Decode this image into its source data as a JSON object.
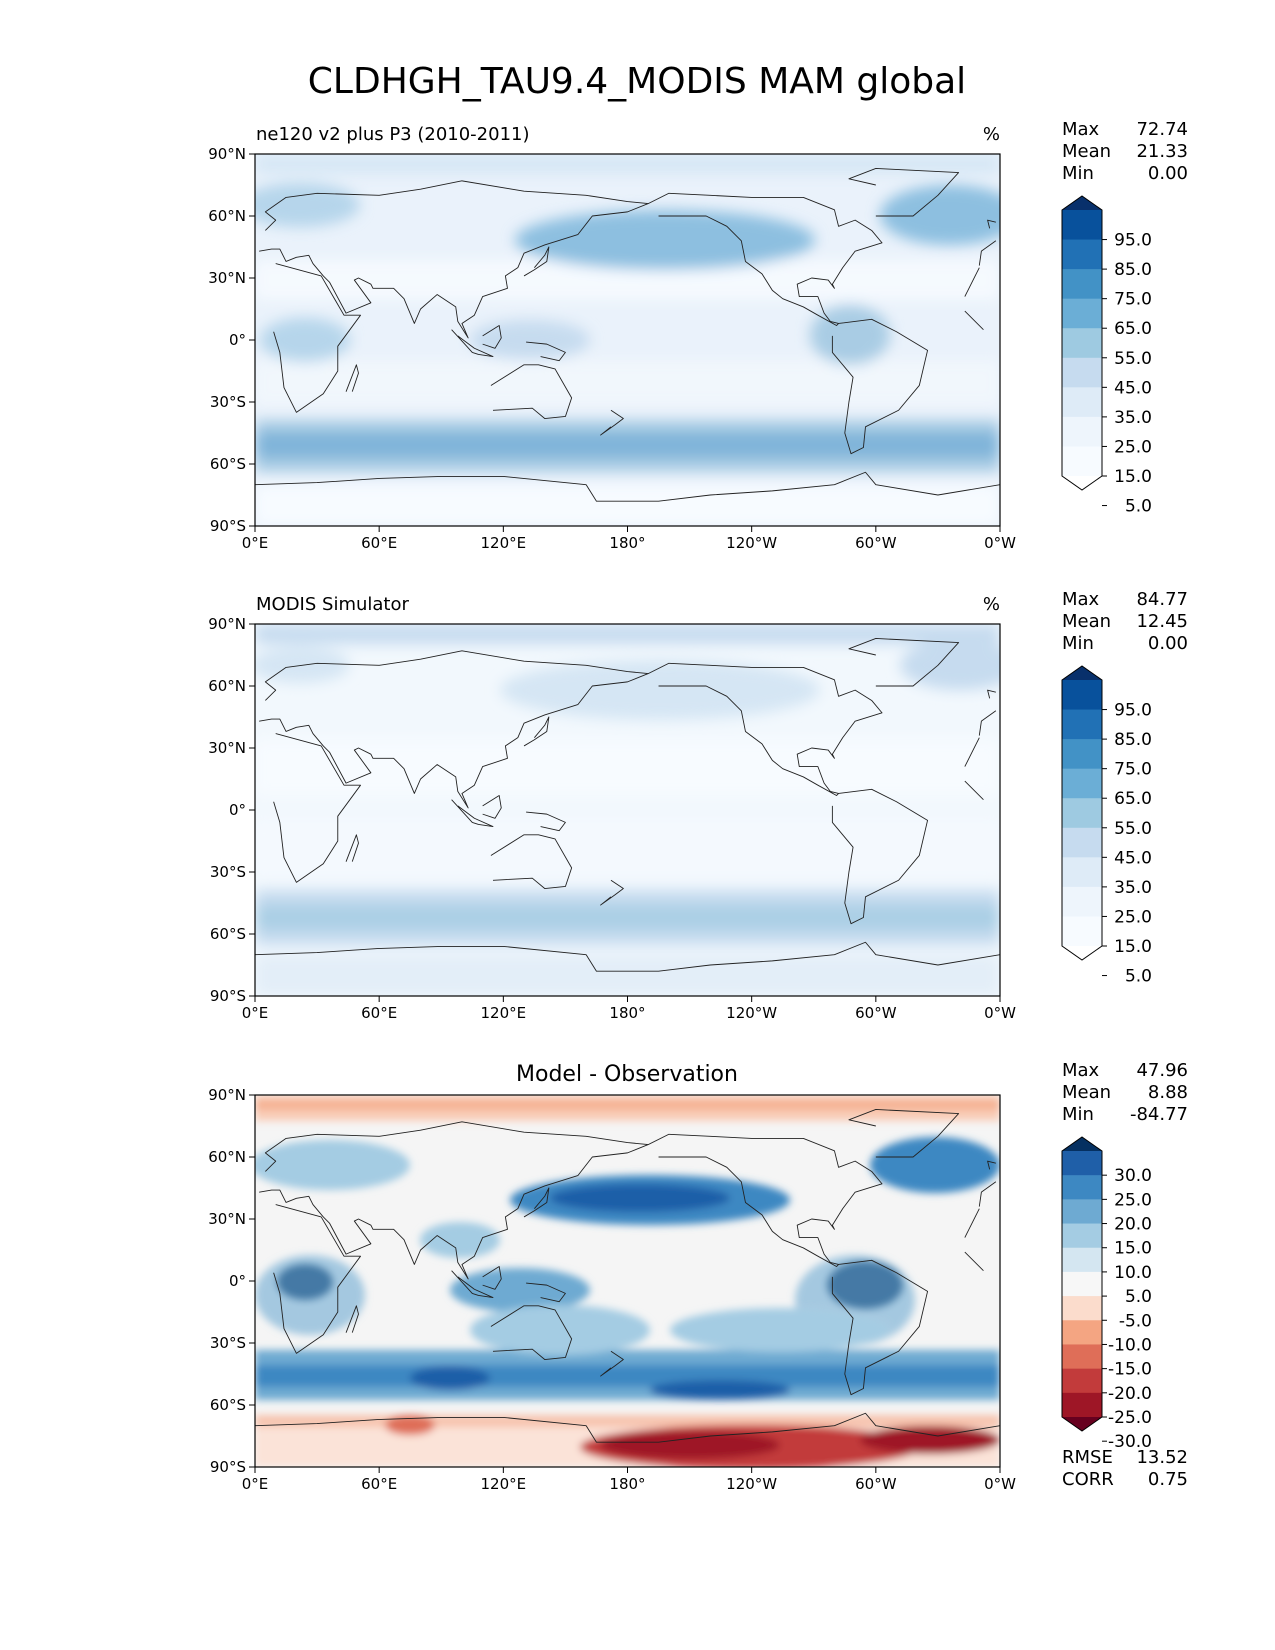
{
  "figure": {
    "title": "CLDHGH_TAU9.4_MODIS MAM global"
  },
  "lon_ticks": [
    "0°E",
    "60°E",
    "120°E",
    "180°",
    "120°W",
    "60°W",
    "0°W"
  ],
  "lat_ticks": [
    "90°N",
    "60°N",
    "30°N",
    "0°",
    "30°S",
    "60°S",
    "90°S"
  ],
  "panels": [
    {
      "id": "model",
      "title": "ne120 v2 plus P3 (2010-2011)",
      "units": "%",
      "colormap": "Blues",
      "stats": {
        "max_label": "Max",
        "max": "72.74",
        "mean_label": "Mean",
        "mean": "21.33",
        "min_label": "Min",
        "min": "0.00"
      },
      "colorbar": {
        "labels": [
          "95.0",
          "85.0",
          "75.0",
          "65.0",
          "55.0",
          "45.0",
          "35.0",
          "25.0",
          "15.0",
          "5.0"
        ],
        "colors": [
          "#08306b",
          "#08519c",
          "#2171b5",
          "#4292c6",
          "#6baed6",
          "#9ecae1",
          "#c6dbef",
          "#deebf7",
          "#eef5fc",
          "#f7fbff",
          "#ffffff"
        ]
      }
    },
    {
      "id": "obs",
      "title": "MODIS Simulator",
      "units": "%",
      "colormap": "Blues",
      "stats": {
        "max_label": "Max",
        "max": "84.77",
        "mean_label": "Mean",
        "mean": "12.45",
        "min_label": "Min",
        "min": "0.00"
      },
      "colorbar": {
        "labels": [
          "95.0",
          "85.0",
          "75.0",
          "65.0",
          "55.0",
          "45.0",
          "35.0",
          "25.0",
          "15.0",
          "5.0"
        ],
        "colors": [
          "#08306b",
          "#08519c",
          "#2171b5",
          "#4292c6",
          "#6baed6",
          "#9ecae1",
          "#c6dbef",
          "#deebf7",
          "#eef5fc",
          "#f7fbff",
          "#ffffff"
        ]
      }
    },
    {
      "id": "diff",
      "title": "Model - Observation",
      "units": "",
      "colormap": "RdBu",
      "stats": {
        "max_label": "Max",
        "max": "47.96",
        "mean_label": "Mean",
        "mean": "8.88",
        "min_label": "Min",
        "min": "-84.77"
      },
      "metrics": {
        "rmse_label": "RMSE",
        "rmse": "13.52",
        "corr_label": "CORR",
        "corr": "0.75"
      },
      "colorbar": {
        "labels": [
          "30.0",
          "25.0",
          "20.0",
          "15.0",
          "10.0",
          "5.0",
          "-5.0",
          "-10.0",
          "-15.0",
          "-20.0",
          "-25.0",
          "-30.0"
        ],
        "colors": [
          "#053061",
          "#1f5fa8",
          "#3d88c2",
          "#6eaad2",
          "#a4cce3",
          "#d4e6f1",
          "#f7f7f7",
          "#fbdccc",
          "#f4a582",
          "#df6e58",
          "#c23b3b",
          "#9e1626",
          "#67001f"
        ]
      }
    }
  ]
}
